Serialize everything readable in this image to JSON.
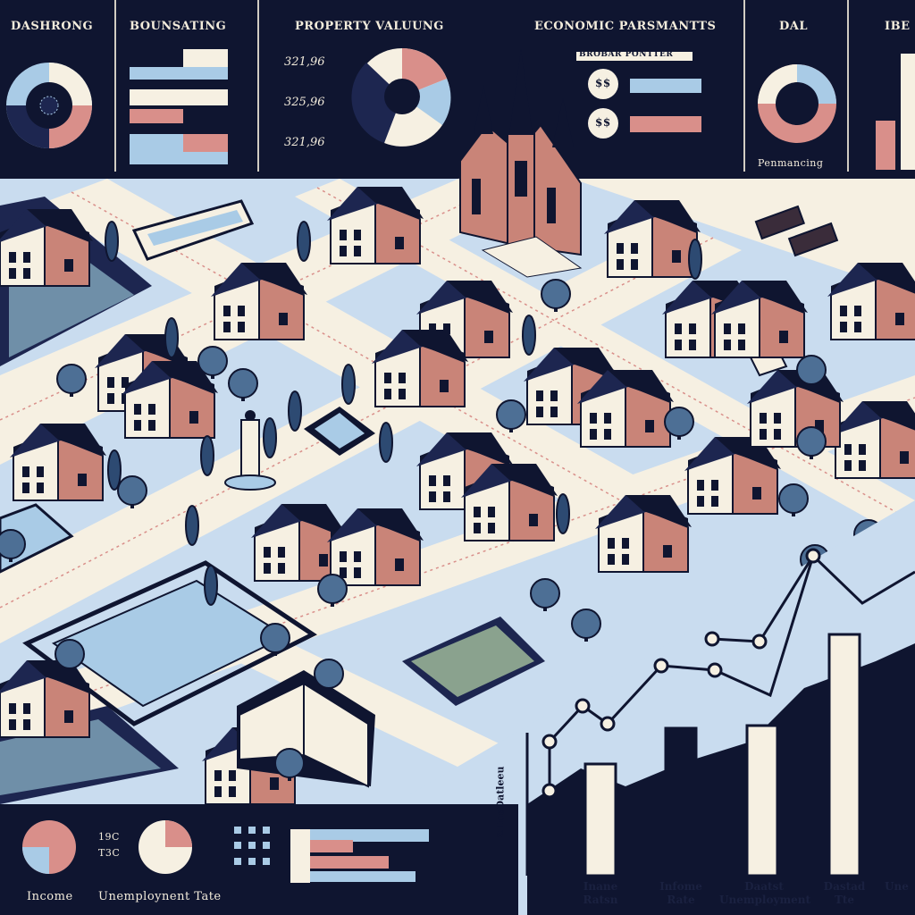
{
  "colors": {
    "navy": "#0f1530",
    "cream": "#f6f0e2",
    "sky": "#a9cbe6",
    "pink": "#d98f8a",
    "brick": "#c98478"
  },
  "top_panels": {
    "p1_title": "DASHRONG",
    "p2_title": "BOUNSATING",
    "p3_title": "PROPERTY VALUUNG",
    "p3_values": [
      "321,96",
      "325,96",
      "321,96"
    ],
    "p4_title": "ECONOMIC PARSMANTTS",
    "p4_subtitle": "BROBAR PONTTER",
    "p4_badges": [
      "$$",
      "$$"
    ],
    "p5_title": "DAL",
    "p5_caption": "Penmancing",
    "p6_title": "IBE"
  },
  "bottom_panel": {
    "label_income": "Income",
    "label_unemployment": "Unemploynent Tate",
    "value_a": "19C",
    "value_b": "T3C"
  },
  "line_chart": {
    "axis_label": "Z IneDatleeu"
  },
  "bar_chart": {
    "labels": [
      "Inane Ratsn",
      "Infome Rate",
      "Daatst Unemployment",
      "Dastad Tte",
      "Une"
    ]
  }
}
